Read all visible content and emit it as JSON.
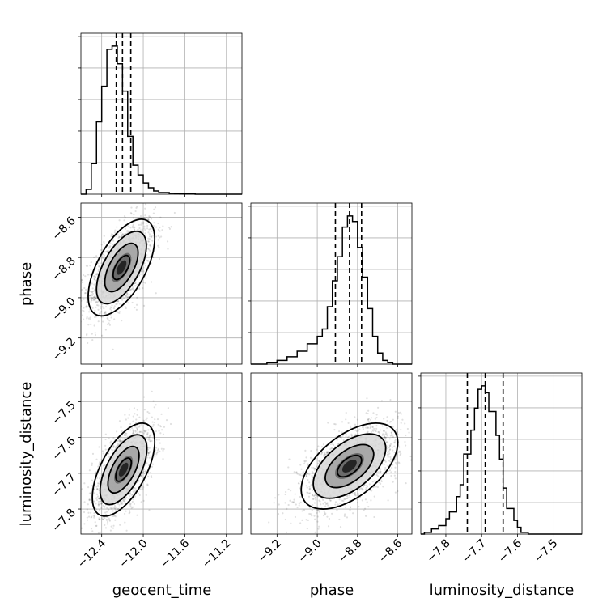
{
  "chart_data": {
    "type": "corner",
    "parameters": [
      "geocent_time",
      "phase",
      "luminosity_distance"
    ],
    "axis_labels": {
      "bottom": [
        "geocent_time",
        "phase",
        "luminosity_distance"
      ],
      "left": [
        "phase",
        "luminosity_distance"
      ]
    },
    "grid": true,
    "axes": {
      "geocent_time": {
        "range": [
          -12.6,
          -11.05
        ],
        "ticks": [
          -12.4,
          -12.0,
          -11.6,
          -11.2
        ],
        "tick_labels": [
          "−12.4",
          "−12.0",
          "−11.6",
          "−11.2"
        ]
      },
      "phase": {
        "range": [
          -9.33,
          -8.53
        ],
        "ticks": [
          -9.2,
          -9.0,
          -8.8,
          -8.6
        ],
        "tick_labels": [
          "−9.2",
          "−9.0",
          "−8.8",
          "−8.6"
        ]
      },
      "luminosity_distance": {
        "range": [
          -7.87,
          -7.42
        ],
        "ticks": [
          -7.8,
          -7.7,
          -7.6,
          -7.5
        ],
        "tick_labels": [
          "−7.8",
          "−7.7",
          "−7.6",
          "−7.5"
        ]
      }
    },
    "histograms": {
      "geocent_time": {
        "bin_edges": [
          -12.6,
          -12.55,
          -12.5,
          -12.45,
          -12.4,
          -12.35,
          -12.3,
          -12.25,
          -12.2,
          -12.15,
          -12.1,
          -12.05,
          -12.0,
          -11.95,
          -11.9,
          -11.85,
          -11.8,
          -11.75,
          -11.7,
          -11.65,
          -11.6,
          -11.55,
          -11.5,
          -11.45,
          -11.4,
          -11.35
        ],
        "counts": [
          0,
          0.03,
          0.19,
          0.45,
          0.67,
          0.9,
          0.92,
          0.81,
          0.64,
          0.36,
          0.18,
          0.12,
          0.07,
          0.04,
          0.02,
          0.01,
          0.01,
          0.005,
          0.003,
          0.002,
          0.001,
          0.001,
          0,
          0,
          0
        ],
        "quantiles": [
          -12.26,
          -12.2,
          -12.12
        ]
      },
      "phase": {
        "bin_edges": [
          -9.25,
          -9.2,
          -9.15,
          -9.1,
          -9.05,
          -9.0,
          -8.975,
          -8.95,
          -8.925,
          -8.9,
          -8.875,
          -8.85,
          -8.825,
          -8.8,
          -8.775,
          -8.75,
          -8.725,
          -8.7,
          -8.675,
          -8.65,
          -8.625
        ],
        "counts": [
          0.01,
          0.02,
          0.04,
          0.07,
          0.11,
          0.15,
          0.19,
          0.31,
          0.45,
          0.58,
          0.74,
          0.8,
          0.77,
          0.63,
          0.47,
          0.3,
          0.15,
          0.06,
          0.02,
          0.01
        ],
        "quantiles": [
          -8.91,
          -8.84,
          -8.78
        ]
      },
      "luminosity_distance": {
        "bin_edges": [
          -7.86,
          -7.84,
          -7.82,
          -7.8,
          -7.79,
          -7.77,
          -7.76,
          -7.75,
          -7.73,
          -7.72,
          -7.71,
          -7.7,
          -7.69,
          -7.68,
          -7.66,
          -7.65,
          -7.64,
          -7.63,
          -7.61,
          -7.6,
          -7.59,
          -7.57
        ],
        "counts": [
          0.01,
          0.03,
          0.05,
          0.09,
          0.13,
          0.22,
          0.29,
          0.47,
          0.61,
          0.74,
          0.85,
          0.87,
          0.83,
          0.72,
          0.58,
          0.44,
          0.27,
          0.15,
          0.08,
          0.04,
          0.01
        ],
        "quantiles": [
          -7.74,
          -7.69,
          -7.64
        ]
      }
    },
    "scatter_2d": [
      {
        "x": "geocent_time",
        "y": "phase",
        "center": [
          -12.21,
          -8.85
        ],
        "sd": [
          0.16,
          0.12
        ],
        "corr": 0.6,
        "contour_levels_sigma": [
          0.5,
          1.0,
          1.5,
          2.0
        ]
      },
      {
        "x": "geocent_time",
        "y": "luminosity_distance",
        "center": [
          -12.19,
          -7.69
        ],
        "sd": [
          0.15,
          0.065
        ],
        "corr": 0.6,
        "contour_levels_sigma": [
          0.5,
          1.0,
          1.5,
          2.0
        ]
      },
      {
        "x": "phase",
        "y": "luminosity_distance",
        "center": [
          -8.84,
          -7.68
        ],
        "sd": [
          0.12,
          0.06
        ],
        "corr": 0.55,
        "contour_levels_sigma": [
          0.5,
          1.0,
          1.5,
          2.0
        ]
      }
    ]
  }
}
